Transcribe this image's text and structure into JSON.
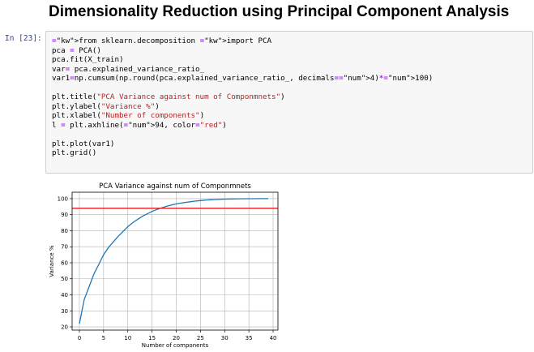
{
  "heading": "Dimensionality Reduction using Principal Component Analysis",
  "cell": {
    "prompt": "In [23]:",
    "code_lines": [
      "from sklearn.decomposition import PCA",
      "pca = PCA()",
      "pca.fit(X_train)",
      "var= pca.explained_variance_ratio_",
      "var1=np.cumsum(np.round(pca.explained_variance_ratio_, decimals=4)*100)",
      "",
      "plt.title(\"PCA Variance against num of Componmnets\")",
      "plt.ylabel(\"Variance %\")",
      "plt.xlabel(\"Number of components\")",
      "l = plt.axhline(94, color=\"red\")",
      "",
      "plt.plot(var1)",
      "plt.grid()"
    ]
  },
  "chart_data": {
    "type": "line",
    "title": "PCA Variance against num of Componmnets",
    "xlabel": "Number of components",
    "ylabel": "Variance %",
    "xlim": [
      -1.5,
      41
    ],
    "ylim": [
      18,
      104
    ],
    "xticks": [
      0,
      5,
      10,
      15,
      20,
      25,
      30,
      35,
      40
    ],
    "yticks": [
      20,
      30,
      40,
      50,
      60,
      70,
      80,
      90,
      100
    ],
    "grid": true,
    "line_color": "#1f77b4",
    "x": [
      0,
      1,
      2,
      3,
      4,
      5,
      6,
      7,
      8,
      9,
      10,
      11,
      12,
      13,
      14,
      15,
      16,
      17,
      18,
      19,
      20,
      21,
      22,
      23,
      24,
      25,
      26,
      27,
      28,
      29,
      30,
      31,
      32,
      33,
      34,
      35,
      36,
      37,
      38,
      39
    ],
    "values": [
      22,
      37,
      45,
      53,
      59,
      65,
      69.5,
      73,
      76.5,
      79.5,
      82.5,
      85,
      87,
      89,
      90.5,
      92,
      93.2,
      94.3,
      95.2,
      96,
      96.7,
      97.2,
      97.7,
      98.1,
      98.5,
      98.8,
      99.1,
      99.3,
      99.5,
      99.6,
      99.7,
      99.8,
      99.85,
      99.9,
      99.93,
      99.95,
      99.97,
      99.98,
      99.99,
      100
    ],
    "hline": {
      "value": 94,
      "color": "#e31a1c"
    }
  }
}
